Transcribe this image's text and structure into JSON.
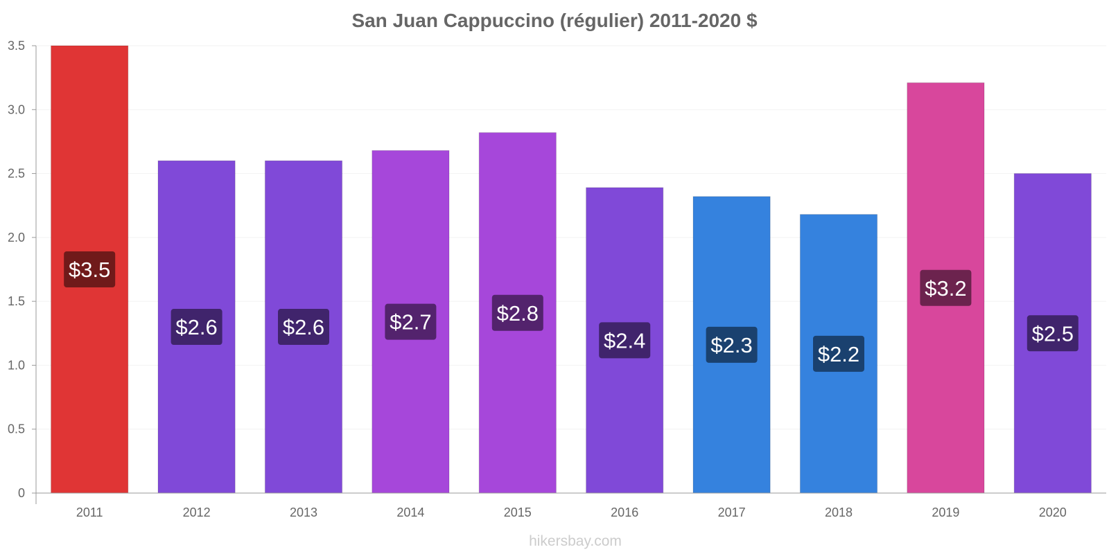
{
  "chart_data": {
    "type": "bar",
    "title": "San Juan Cappuccino (régulier) 2011-2020 $",
    "xlabel": "",
    "ylabel": "",
    "categories": [
      "2011",
      "2012",
      "2013",
      "2014",
      "2015",
      "2016",
      "2017",
      "2018",
      "2019",
      "2020"
    ],
    "values": [
      3.5,
      2.6,
      2.6,
      2.68,
      2.82,
      2.39,
      2.32,
      2.18,
      3.21,
      2.5
    ],
    "data_labels": [
      "$3.5",
      "$2.6",
      "$2.6",
      "$2.7",
      "$2.8",
      "$2.4",
      "$2.3",
      "$2.2",
      "$3.2",
      "$2.5"
    ],
    "bar_colors": [
      "#e03535",
      "#8049d8",
      "#8049d8",
      "#a647da",
      "#a647da",
      "#8049d8",
      "#3582de",
      "#3582de",
      "#d8479c",
      "#8049d8"
    ],
    "label_bg_colors": [
      "#701a1a",
      "#40246c",
      "#40246c",
      "#53236d",
      "#53236d",
      "#40246c",
      "#1a416f",
      "#1a416f",
      "#6c234e",
      "#40246c"
    ],
    "ylim": [
      0,
      3.5
    ],
    "yticks": [
      0,
      0.5,
      1.0,
      1.5,
      2.0,
      2.5,
      3.0,
      3.5
    ],
    "ytick_labels": [
      "0",
      "0.5",
      "1.0",
      "1.5",
      "2.0",
      "2.5",
      "3.0",
      "3.5"
    ],
    "grid": true,
    "legend": "none"
  },
  "watermark": "hikersbay.com"
}
